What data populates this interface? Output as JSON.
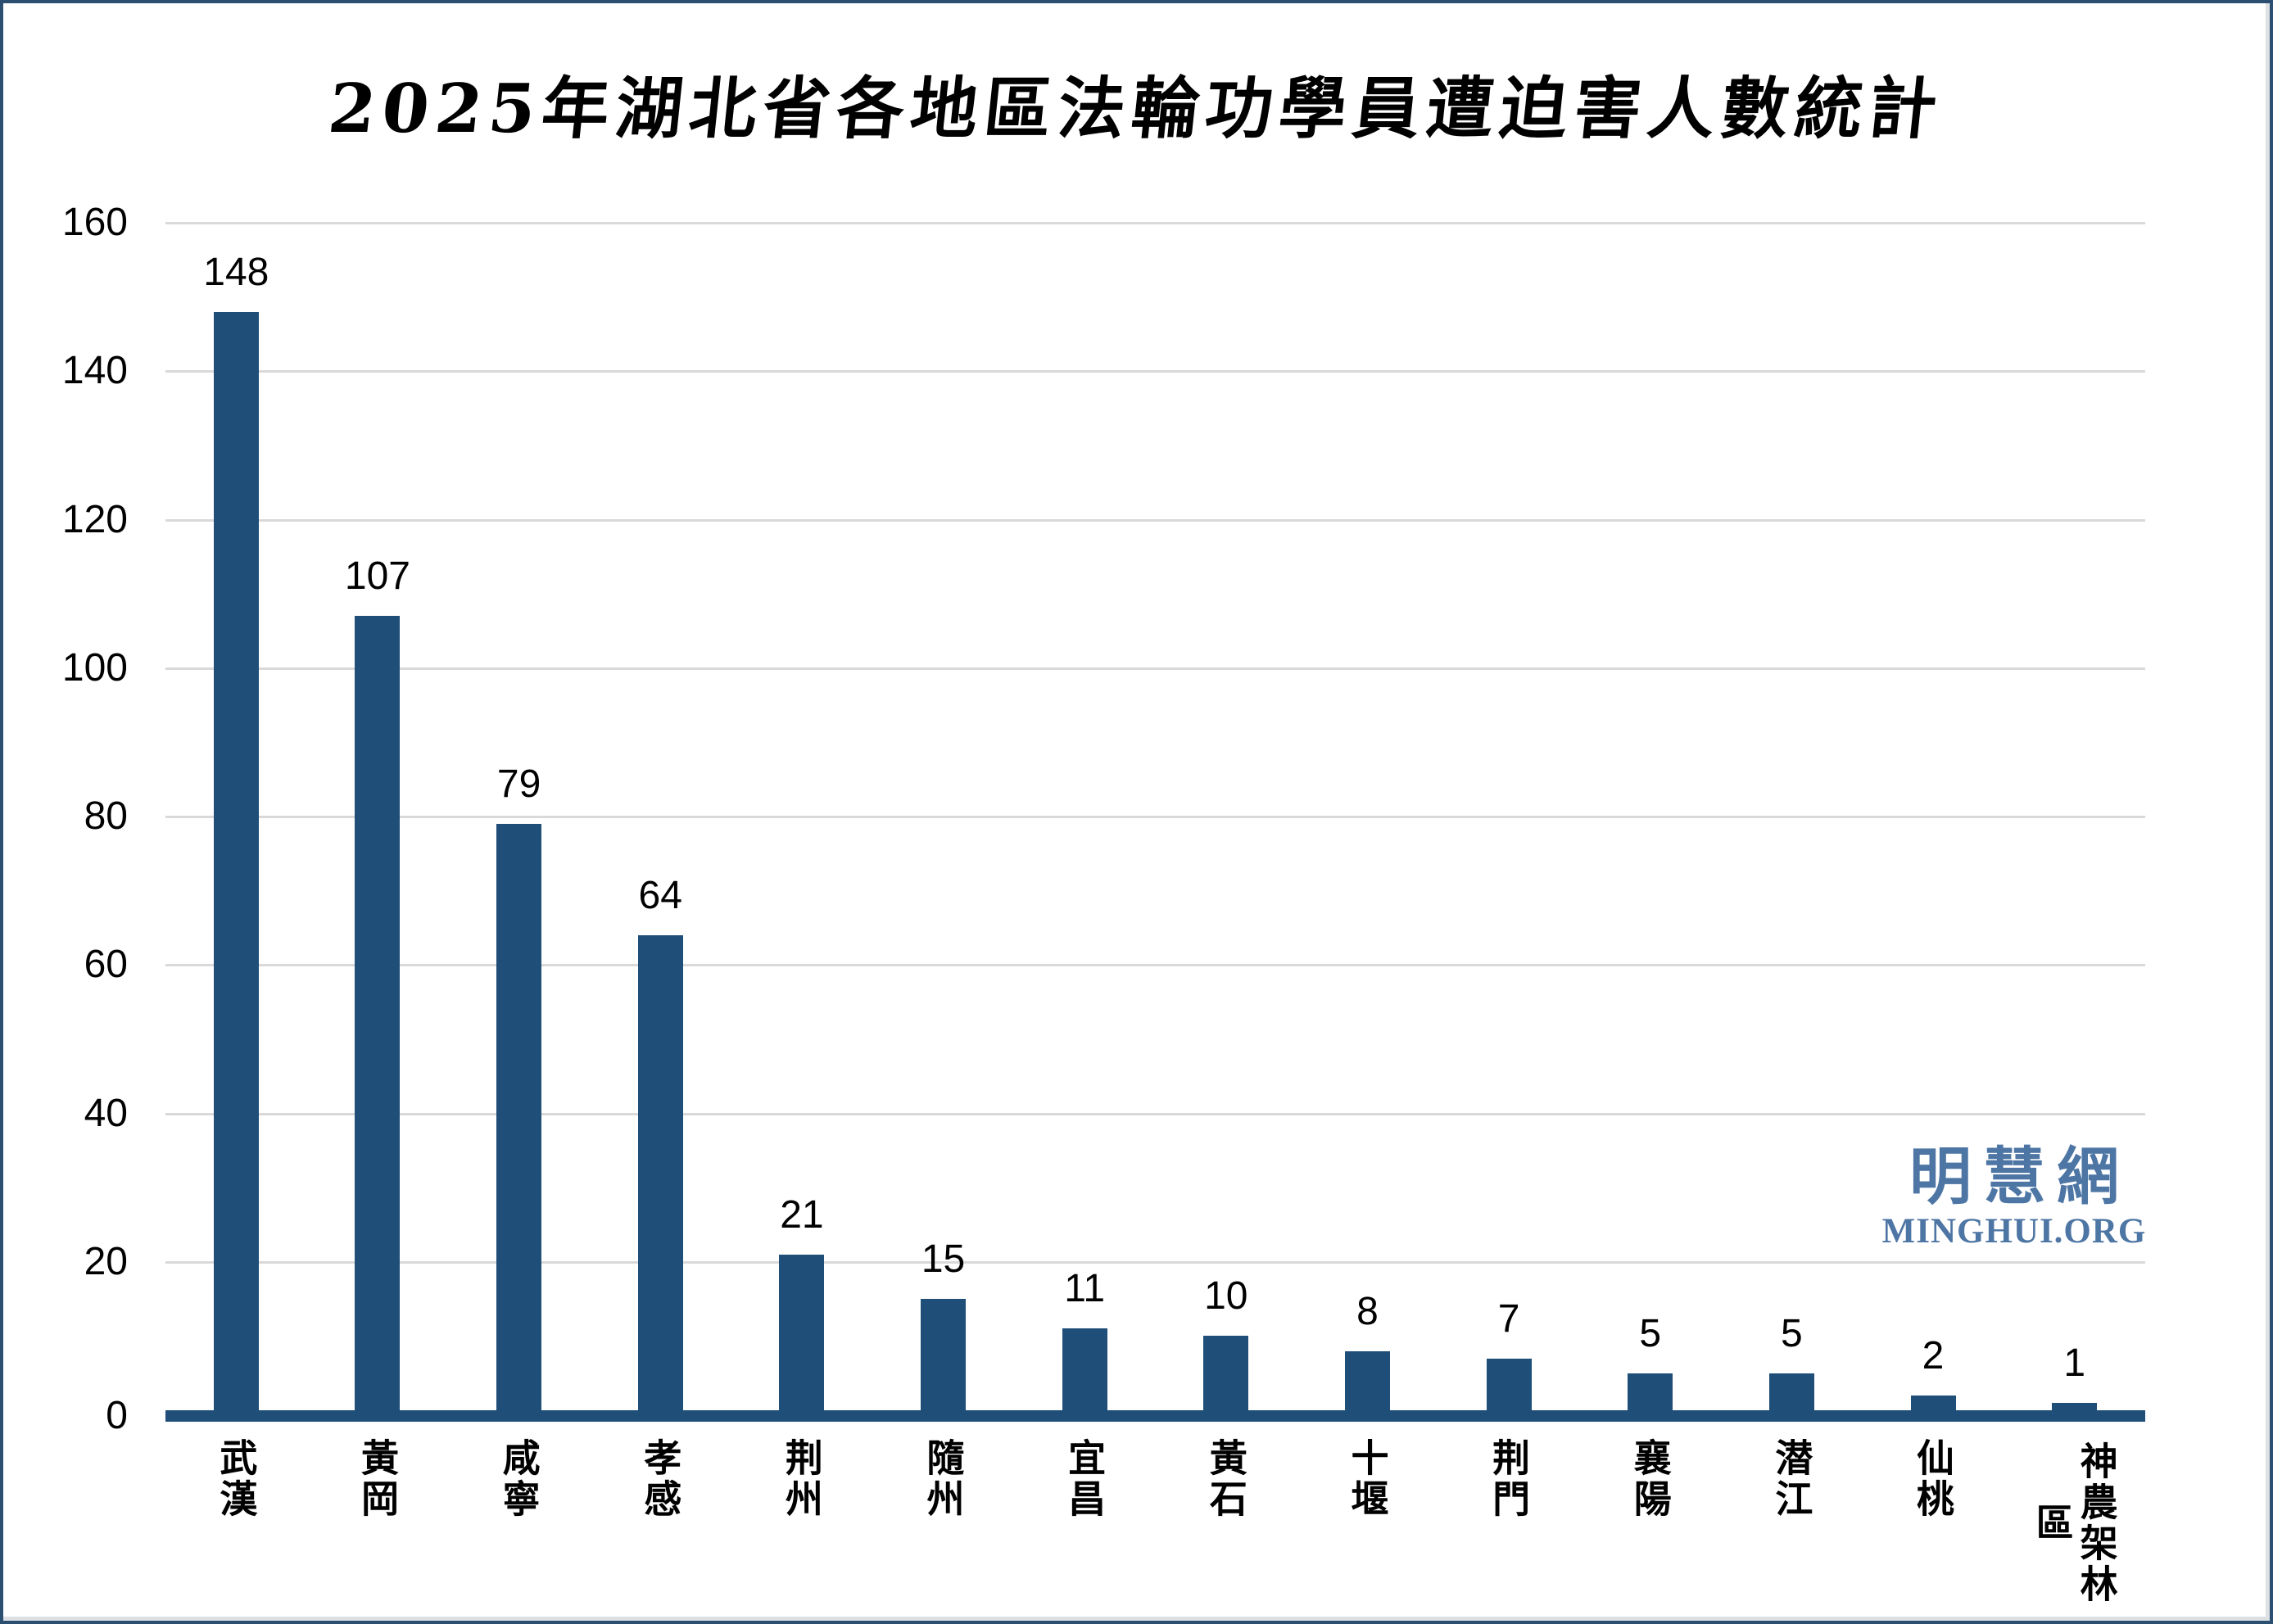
{
  "title": "2025年湖北省各地區法輪功學員遭迫害人數統計",
  "watermark": {
    "cjk": "明慧網",
    "latin": "MINGHUI.ORG",
    "color": "#4e76a4"
  },
  "colors": {
    "bar": "#1F4E79",
    "axis": "#1F4E79",
    "gridline": "#D9D9D9",
    "frame_border": "#2b4f70",
    "text": "#000000"
  },
  "chart_data": {
    "type": "bar",
    "title": "2025年湖北省各地區法輪功學員遭迫害人數統計",
    "categories": [
      "武漢",
      "黃岡",
      "咸寧",
      "孝感",
      "荆州",
      "隨州",
      "宜昌",
      "黃石",
      "十堰",
      "荆門",
      "襄陽",
      "潜江",
      "仙桃",
      "神農架林區"
    ],
    "values": [
      148,
      107,
      79,
      64,
      21,
      15,
      11,
      10,
      8,
      7,
      5,
      5,
      2,
      1
    ],
    "xlabel": "",
    "ylabel": "",
    "ylim": [
      0,
      160
    ],
    "yticks": [
      0,
      20,
      40,
      60,
      80,
      100,
      120,
      140,
      160
    ],
    "grid": true,
    "legend": false,
    "data_labels": true,
    "x_tick_orientation": "vertical"
  }
}
